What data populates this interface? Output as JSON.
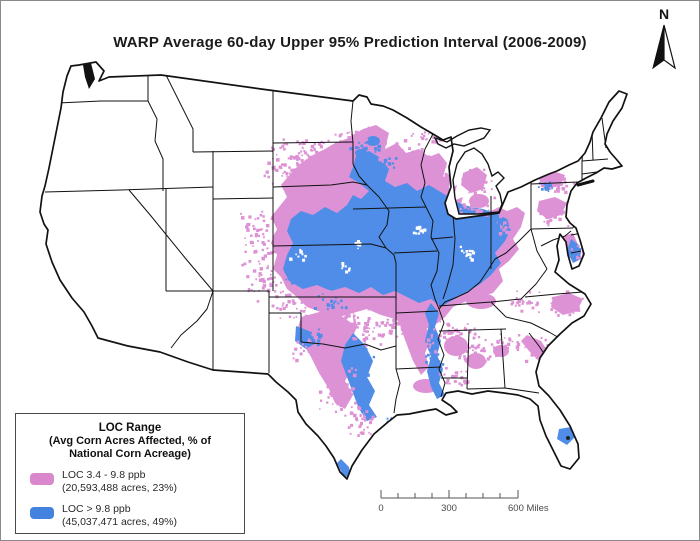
{
  "title": "WARP Average 60-day Upper 95% Prediction Interval (2006-2009)",
  "north_arrow_label": "N",
  "legend": {
    "title": "LOC Range",
    "subtitle": [
      "(Avg Corn Acres Affected, % of",
      "National Corn Acreage)"
    ],
    "entries": [
      {
        "label": "LOC 3.4 - 9.8 ppb",
        "detail": "(20,593,488 acres, 23%)",
        "color": "#D988CE"
      },
      {
        "label": "LOC > 9.8 ppb",
        "detail": "(45,037,471 acres, 49%)",
        "color": "#4383DF"
      }
    ]
  },
  "scale_bar": {
    "tick_labels": [
      "0",
      "300"
    ],
    "end_label": "600 Miles",
    "range_miles": [
      0,
      600
    ]
  },
  "map": {
    "fill_colors": {
      "loc_mid": "#DE92D6",
      "loc_high": "#4F8DE8",
      "land": "#FFFFFF",
      "boundary": "#121212"
    }
  }
}
